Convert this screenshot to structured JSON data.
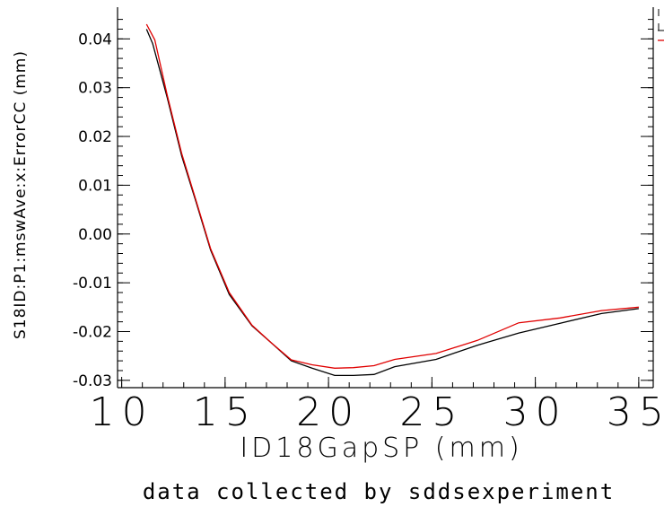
{
  "chart_data": {
    "type": "line",
    "title": "",
    "xlabel": "ID18GapSP (mm)",
    "ylabel": "S18ID:P1:mswAve:x:ErrorCC (mm)",
    "caption": "data collected by sddsexperiment",
    "xlim": [
      9.8,
      35.7
    ],
    "ylim": [
      -0.0315,
      0.0465
    ],
    "x_ticks": [
      10,
      15,
      20,
      25,
      30,
      35
    ],
    "x_tick_labels": [
      "10",
      "15",
      "20",
      "25",
      "30",
      "35"
    ],
    "y_ticks": [
      0.04,
      0.03,
      0.02,
      0.01,
      0.0,
      -0.01,
      -0.02,
      -0.03
    ],
    "y_tick_labels": [
      "0.04",
      "0.03",
      "0.02",
      "0.01",
      "0.00",
      "-0.01",
      "-0.02",
      "-0.03"
    ],
    "grid": false,
    "legend_position": "top-right (clipped)",
    "series": [
      {
        "color": "#000000",
        "x": [
          11.2,
          11.5,
          12.2,
          12.9,
          13.6,
          14.3,
          15.2,
          16.3,
          17.2,
          18.2,
          19.2,
          20.3,
          21.2,
          22.2,
          23.2,
          25.2,
          27.2,
          29.2,
          31.2,
          33.2,
          35.0
        ],
        "y": [
          0.042,
          0.039,
          0.028,
          0.016,
          0.0065,
          -0.0033,
          -0.0124,
          -0.0188,
          -0.0222,
          -0.026,
          -0.0275,
          -0.029,
          -0.029,
          -0.0288,
          -0.0272,
          -0.0257,
          -0.0228,
          -0.0203,
          -0.0183,
          -0.0163,
          -0.0153
        ]
      },
      {
        "color": "#e00000",
        "x": [
          11.2,
          11.6,
          12.2,
          12.9,
          13.6,
          14.3,
          15.2,
          16.3,
          17.2,
          18.2,
          19.2,
          20.3,
          21.2,
          22.2,
          23.2,
          25.2,
          27.2,
          29.2,
          31.2,
          33.2,
          35.0
        ],
        "y": [
          0.043,
          0.0398,
          0.0285,
          0.0165,
          0.0068,
          -0.003,
          -0.012,
          -0.0187,
          -0.0222,
          -0.0258,
          -0.0268,
          -0.0275,
          -0.0274,
          -0.027,
          -0.0257,
          -0.0245,
          -0.0218,
          -0.0182,
          -0.0172,
          -0.0157,
          -0.015
        ]
      }
    ]
  }
}
